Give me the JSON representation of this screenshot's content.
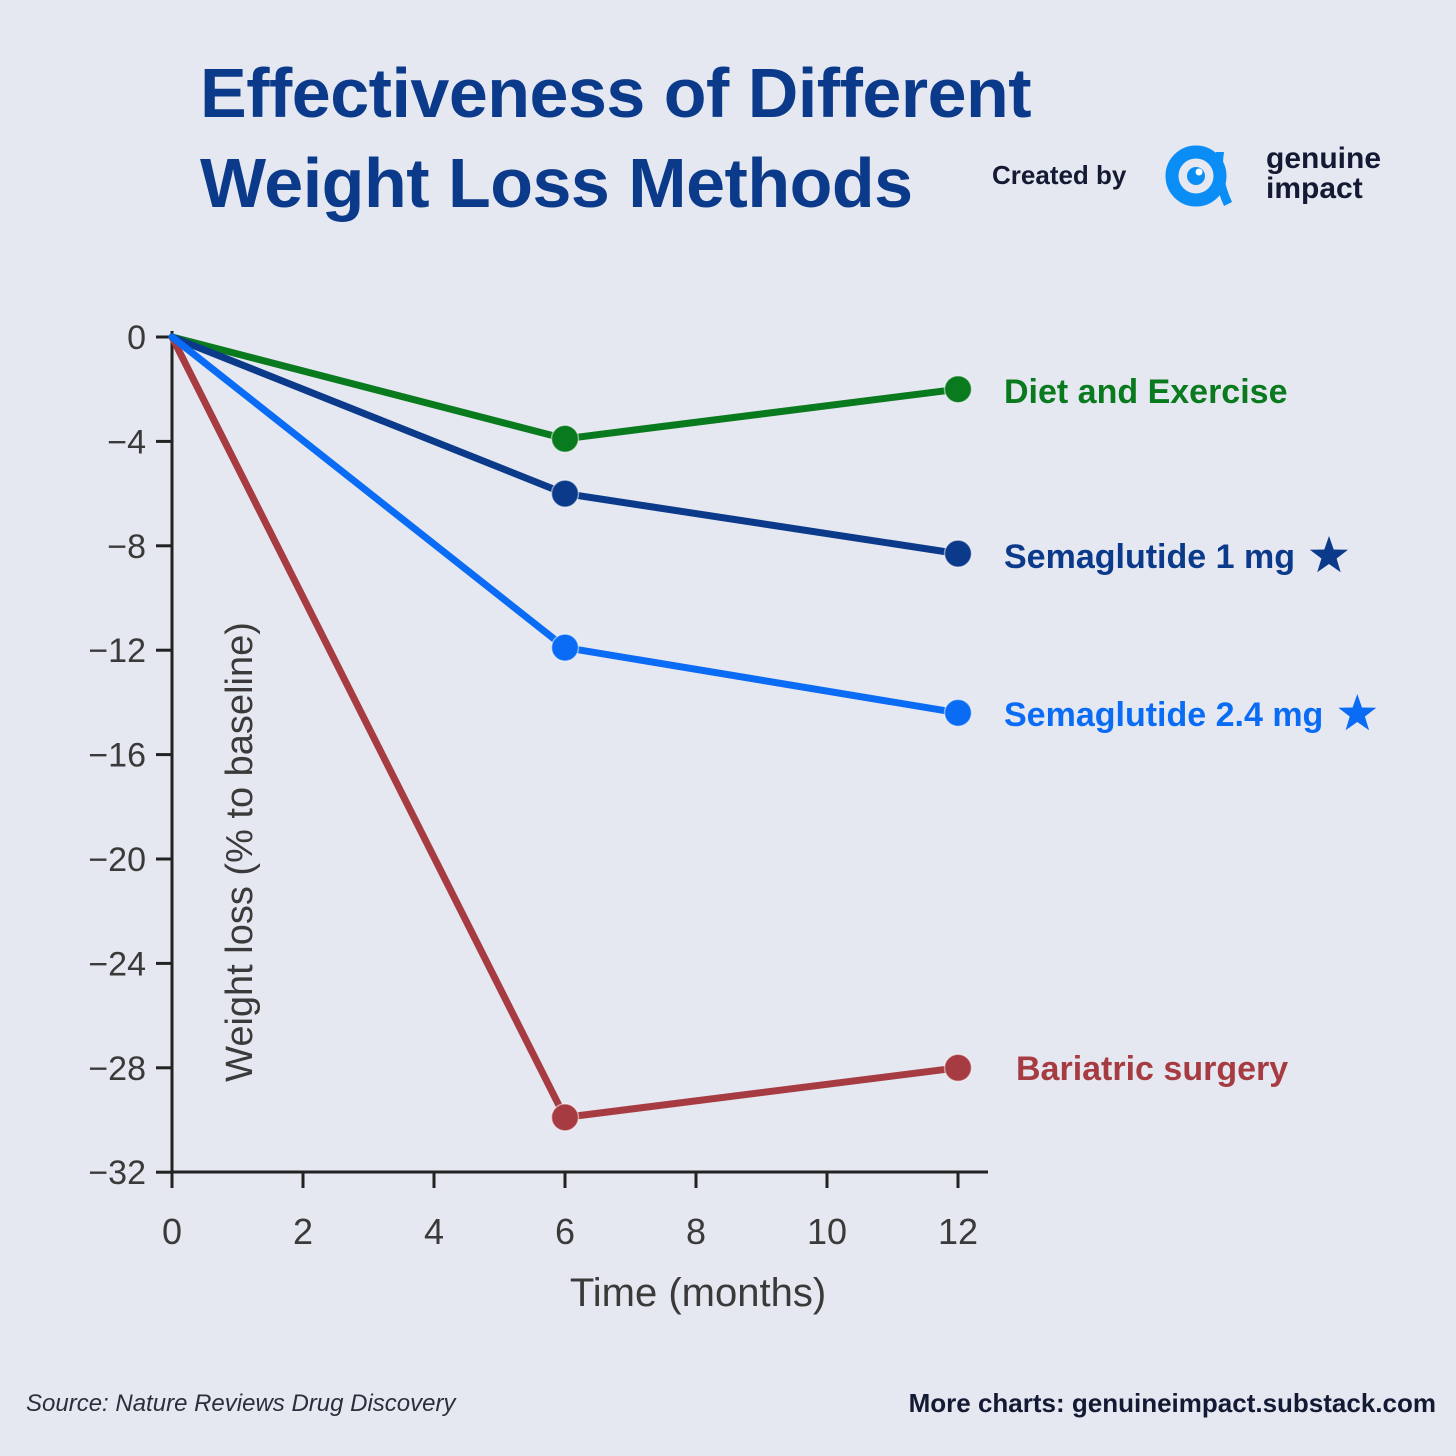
{
  "header": {
    "title_line1": "Effectiveness of Different",
    "title_line2": "Weight Loss Methods",
    "created_by": "Created by",
    "brand_line1": "genuine",
    "brand_line2": "impact"
  },
  "footer": {
    "source": "Source: Nature Reviews Drug Discovery",
    "more_charts": "More charts: genuineimpact.substack.com"
  },
  "chart_data": {
    "type": "line",
    "xlabel": "Time (months)",
    "ylabel": "Weight loss (% to baseline)",
    "x_ticks": [
      0,
      2,
      4,
      6,
      8,
      10,
      12
    ],
    "y_ticks": [
      0,
      -4,
      -8,
      -12,
      -16,
      -20,
      -24,
      -28,
      -32
    ],
    "xlim": [
      0,
      12.5
    ],
    "ylim": [
      -32,
      0
    ],
    "grid": false,
    "legend": "inline-right",
    "series": [
      {
        "name": "Diet and Exercise",
        "color": "#0a7a1e",
        "star": false,
        "x": [
          0,
          6,
          12
        ],
        "y": [
          0,
          -3.9,
          -2.0
        ]
      },
      {
        "name": "Semaglutide 1 mg",
        "color": "#0b3a8a",
        "star": true,
        "x": [
          0,
          6,
          12
        ],
        "y": [
          0,
          -6.0,
          -8.3
        ]
      },
      {
        "name": "Semaglutide 2.4 mg",
        "color": "#0a6cf5",
        "star": true,
        "x": [
          0,
          6,
          12
        ],
        "y": [
          0,
          -11.9,
          -14.4
        ]
      },
      {
        "name": "Bariatric surgery",
        "color": "#a63c42",
        "star": false,
        "x": [
          0,
          6,
          12
        ],
        "y": [
          0,
          -29.9,
          -28.0
        ]
      }
    ]
  }
}
